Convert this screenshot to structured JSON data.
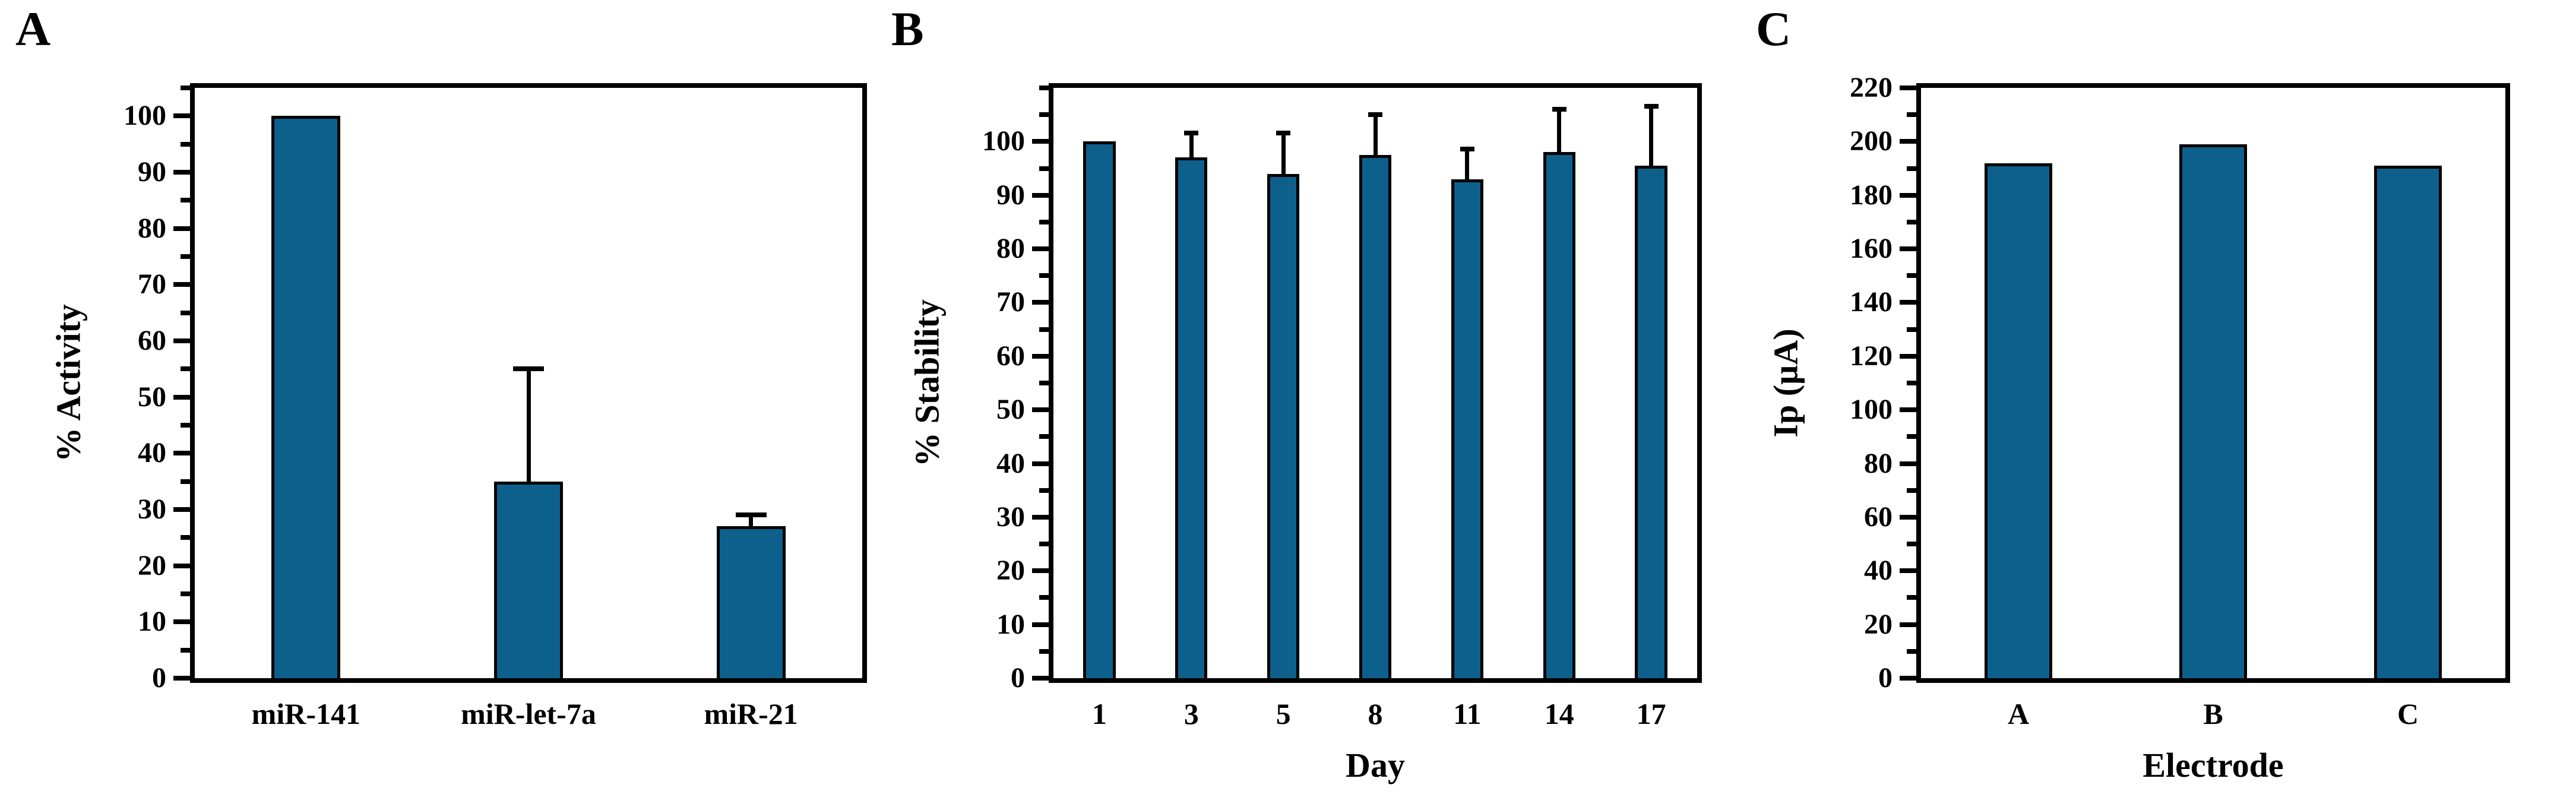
{
  "figure": {
    "background": "#ffffff",
    "bar_fill_color": "#0e608c",
    "bar_border_color": "#000000",
    "axis_color": "#000000"
  },
  "chart_data": [
    {
      "panel_label": "A",
      "type": "bar",
      "categories": [
        "miR-141",
        "miR-let-7a",
        "miR-21"
      ],
      "values": [
        100,
        35,
        27
      ],
      "errors_plus": [
        0,
        20.5,
        2.5
      ],
      "title": "",
      "xlabel": "",
      "ylabel": "% Activity",
      "ylim": [
        0,
        105
      ],
      "yticks": [
        0,
        10,
        20,
        30,
        40,
        50,
        60,
        70,
        80,
        90,
        100
      ],
      "minor_tick_step": 5,
      "grid": false,
      "legend": "none"
    },
    {
      "panel_label": "B",
      "type": "bar",
      "categories": [
        "1",
        "3",
        "5",
        "8",
        "11",
        "14",
        "17"
      ],
      "values": [
        100,
        97,
        94,
        97.5,
        93,
        98,
        95.5
      ],
      "errors_plus": [
        0,
        5,
        8,
        8,
        6,
        8.5,
        11.5
      ],
      "title": "",
      "xlabel": "Day",
      "ylabel": "% Stability",
      "ylim": [
        0,
        110
      ],
      "yticks": [
        0,
        10,
        20,
        30,
        40,
        50,
        60,
        70,
        80,
        90,
        100
      ],
      "minor_tick_step": 5,
      "grid": false,
      "legend": "none"
    },
    {
      "panel_label": "C",
      "type": "bar",
      "categories": [
        "A",
        "B",
        "C"
      ],
      "values": [
        192,
        199,
        191
      ],
      "errors_plus": [
        0,
        0,
        0
      ],
      "title": "",
      "xlabel": "Electrode",
      "ylabel": "Ip (µA)",
      "ylim": [
        0,
        220
      ],
      "yticks": [
        0,
        20,
        40,
        60,
        80,
        100,
        120,
        140,
        160,
        180,
        200,
        220
      ],
      "minor_tick_step": 10,
      "grid": false,
      "legend": "none"
    }
  ]
}
